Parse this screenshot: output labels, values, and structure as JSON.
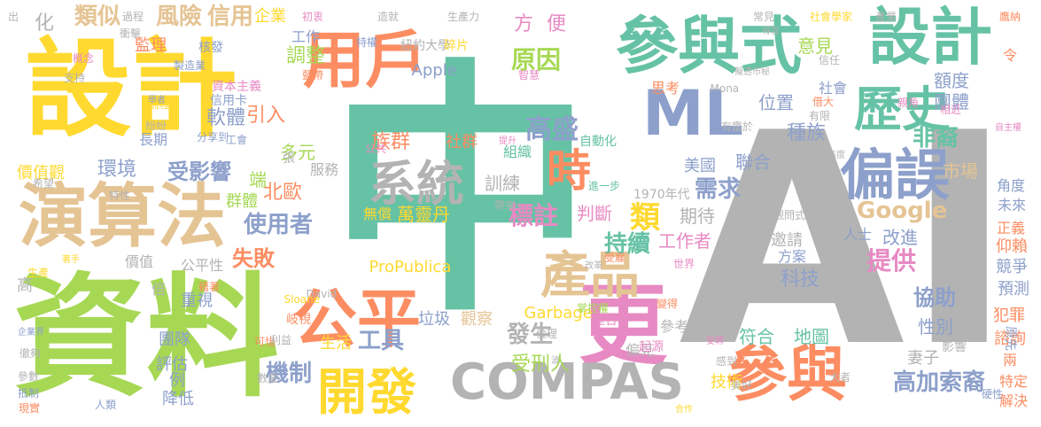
{
  "words": [
    {
      "text": "AI",
      "color": "#b3b3b3"
    },
    {
      "text": "中",
      "color": "#66c2a5"
    },
    {
      "text": "資料",
      "color": "#a6d854"
    },
    {
      "text": "設計",
      "color": "#ffd92f"
    },
    {
      "text": "參與式",
      "color": "#66c2a5"
    },
    {
      "text": "設計",
      "color": "#66c2a5"
    },
    {
      "text": "演算法",
      "color": "#e5c494"
    },
    {
      "text": "用戶",
      "color": "#fc8d62"
    },
    {
      "text": "ML",
      "color": "#8da0cb"
    },
    {
      "text": "歷史",
      "color": "#66c2a5"
    },
    {
      "text": "偏誤",
      "color": "#8da0cb"
    },
    {
      "text": "公平",
      "color": "#fc8d62"
    },
    {
      "text": "更",
      "color": "#e78ac3"
    },
    {
      "text": "COMPAS",
      "color": "#b3b3b3"
    },
    {
      "text": "參與",
      "color": "#fc8d62"
    },
    {
      "text": "開發",
      "color": "#ffd92f"
    },
    {
      "text": "產品",
      "color": "#e5c494"
    },
    {
      "text": "系統",
      "color": "#b3b3b3"
    },
    {
      "text": "時",
      "color": "#fc8d62"
    },
    {
      "text": "Google",
      "color": "#e5c494"
    },
    {
      "text": "類似",
      "color": "#e5c494"
    },
    {
      "text": "風險",
      "color": "#e5c494"
    },
    {
      "text": "信用",
      "color": "#e5c494"
    },
    {
      "text": "企業",
      "color": "#ffd92f"
    },
    {
      "text": "方",
      "color": "#e78ac3"
    },
    {
      "text": "便",
      "color": "#e78ac3"
    },
    {
      "text": "原因",
      "color": "#a6d854"
    },
    {
      "text": "Apple",
      "color": "#8da0cb"
    },
    {
      "text": "化",
      "color": "#b3b3b3"
    },
    {
      "text": "監理",
      "color": "#fc8d62"
    },
    {
      "text": "工作",
      "color": "#8da0cb"
    },
    {
      "text": "調整",
      "color": "#a6d854"
    },
    {
      "text": "核發",
      "color": "#8da0cb"
    },
    {
      "text": "信用卡",
      "color": "#8da0cb"
    },
    {
      "text": "軟體",
      "color": "#8da0cb"
    },
    {
      "text": "引入",
      "color": "#fc8d62"
    },
    {
      "text": "長期",
      "color": "#8da0cb"
    },
    {
      "text": "多元",
      "color": "#a6d854"
    },
    {
      "text": "價值觀",
      "color": "#ffd92f"
    },
    {
      "text": "環境",
      "color": "#8da0cb"
    },
    {
      "text": "受影響",
      "color": "#8da0cb"
    },
    {
      "text": "端",
      "color": "#a6d854"
    },
    {
      "text": "群體",
      "color": "#a6d854"
    },
    {
      "text": "北歐",
      "color": "#fc8d62"
    },
    {
      "text": "使用者",
      "color": "#8da0cb"
    },
    {
      "text": "失敗",
      "color": "#fc8d62"
    },
    {
      "text": "價值",
      "color": "#b3b3b3"
    },
    {
      "text": "公平性",
      "color": "#b3b3b3"
    },
    {
      "text": "服務",
      "color": "#b3b3b3"
    },
    {
      "text": "族群",
      "color": "#fc8d62"
    },
    {
      "text": "社群",
      "color": "#fc8d62"
    },
    {
      "text": "高盛",
      "color": "#8da0cb"
    },
    {
      "text": "目標",
      "color": "#66c2a5"
    },
    {
      "text": "標註",
      "color": "#e78ac3"
    },
    {
      "text": "判斷",
      "color": "#e78ac3"
    },
    {
      "text": "組織",
      "color": "#66c2a5"
    },
    {
      "text": "訓練",
      "color": "#b3b3b3"
    },
    {
      "text": "萬靈丹",
      "color": "#ffd92f"
    },
    {
      "text": "無償",
      "color": "#ffd92f"
    },
    {
      "text": "持續",
      "color": "#66c2a5"
    },
    {
      "text": "美國",
      "color": "#8da0cb"
    },
    {
      "text": "聯合",
      "color": "#8da0cb"
    },
    {
      "text": "需求",
      "color": "#8da0cb"
    },
    {
      "text": "類",
      "color": "#ffd92f"
    },
    {
      "text": "期待",
      "color": "#b3b3b3"
    },
    {
      "text": "工作者",
      "color": "#e78ac3"
    },
    {
      "text": "種族",
      "color": "#8da0cb"
    },
    {
      "text": "非裔",
      "color": "#66c2a5"
    },
    {
      "text": "意見",
      "color": "#a6d854"
    },
    {
      "text": "社會",
      "color": "#8da0cb"
    },
    {
      "text": "團體",
      "color": "#8da0cb"
    },
    {
      "text": "額度",
      "color": "#8da0cb"
    },
    {
      "text": "市場",
      "color": "#e5c494"
    },
    {
      "text": "位置",
      "color": "#8da0cb"
    },
    {
      "text": "提供",
      "color": "#e78ac3"
    },
    {
      "text": "人士",
      "color": "#8da0cb"
    },
    {
      "text": "改進",
      "color": "#8da0cb"
    },
    {
      "text": "邀請",
      "color": "#b3b3b3"
    },
    {
      "text": "方案",
      "color": "#8da0cb"
    },
    {
      "text": "科技",
      "color": "#8da0cb"
    },
    {
      "text": "協助",
      "color": "#8da0cb"
    },
    {
      "text": "性別",
      "color": "#8da0cb"
    },
    {
      "text": "符合",
      "color": "#66c2a5"
    },
    {
      "text": "地圖",
      "color": "#66c2a5"
    },
    {
      "text": "妻子",
      "color": "#b3b3b3"
    },
    {
      "text": "高加索裔",
      "color": "#8da0cb"
    },
    {
      "text": "技術",
      "color": "#ffd92f"
    },
    {
      "text": "ProPublica",
      "color": "#ffd92f"
    },
    {
      "text": "Garbage",
      "color": "#ffd92f"
    },
    {
      "text": "垃圾",
      "color": "#8da0cb"
    },
    {
      "text": "觀察",
      "color": "#e5c494"
    },
    {
      "text": "發生",
      "color": "#b3b3b3"
    },
    {
      "text": "受刑人",
      "color": "#a6d854"
    },
    {
      "text": "偏見",
      "color": "#b3b3b3"
    },
    {
      "text": "參考",
      "color": "#b3b3b3"
    },
    {
      "text": "工具",
      "color": "#8da0cb"
    },
    {
      "text": "生活",
      "color": "#ffd92f"
    },
    {
      "text": "機制",
      "color": "#8da0cb"
    },
    {
      "text": "重視",
      "color": "#8da0cb"
    },
    {
      "text": "團隊",
      "color": "#8da0cb"
    },
    {
      "text": "評估",
      "color": "#8da0cb"
    },
    {
      "text": "例",
      "color": "#8da0cb"
    },
    {
      "text": "降低",
      "color": "#8da0cb"
    },
    {
      "text": "岐視",
      "color": "#fc8d62"
    },
    {
      "text": "倍",
      "color": "#b3b3b3"
    },
    {
      "text": "高",
      "color": "#b3b3b3"
    },
    {
      "text": "張",
      "color": "#b3b3b3"
    },
    {
      "text": "未來",
      "color": "#8da0cb"
    },
    {
      "text": "正義",
      "color": "#fc8d62"
    },
    {
      "text": "仰賴",
      "color": "#fc8d62"
    },
    {
      "text": "競爭",
      "color": "#8da0cb"
    },
    {
      "text": "預測",
      "color": "#8da0cb"
    },
    {
      "text": "犯罪",
      "color": "#fc8d62"
    },
    {
      "text": "諮詢",
      "color": "#fc8d62"
    },
    {
      "text": "兩",
      "color": "#fc8d62"
    },
    {
      "text": "特定",
      "color": "#fc8d62"
    },
    {
      "text": "解決",
      "color": "#fc8d62"
    },
    {
      "text": "角度",
      "color": "#8da0cb"
    },
    {
      "text": "令",
      "color": "#fc8d62"
    },
    {
      "text": "原先",
      "color": "#8da0cb"
    },
    {
      "text": "思考",
      "color": "#fc8d62"
    },
    {
      "text": "David",
      "color": "#b3b3b3"
    },
    {
      "text": "Sloane",
      "color": "#ffd92f"
    },
    {
      "text": "Mona",
      "color": "#b3b3b3"
    },
    {
      "text": "1970年代",
      "color": "#b3b3b3"
    },
    {
      "text": "出",
      "color": "#b3b3b3"
    },
    {
      "text": "過程",
      "color": "#b3b3b3"
    },
    {
      "text": "初衷",
      "color": "#e78ac3"
    },
    {
      "text": "造就",
      "color": "#b3b3b3"
    },
    {
      "text": "生產力",
      "color": "#b3b3b3"
    },
    {
      "text": "常見",
      "color": "#b3b3b3"
    },
    {
      "text": "社會學家",
      "color": "#ffd92f"
    },
    {
      "text": "產業",
      "color": "#b3b3b3"
    },
    {
      "text": "鷹納",
      "color": "#fc8d62"
    },
    {
      "text": "紐約大學",
      "color": "#b3b3b3"
    },
    {
      "text": "碎片",
      "color": "#ffd92f"
    },
    {
      "text": "智慧",
      "color": "#e78ac3"
    },
    {
      "text": "人工智慧",
      "color": "#66c2a5"
    },
    {
      "text": "自動化",
      "color": "#66c2a5"
    },
    {
      "text": "提升",
      "color": "#e78ac3"
    },
    {
      "text": "公共",
      "color": "#e78ac3"
    },
    {
      "text": "帶來",
      "color": "#b3b3b3"
    },
    {
      "text": "進一步",
      "color": "#66c2a5"
    },
    {
      "text": "工會",
      "color": "#8da0cb"
    },
    {
      "text": "資本主義",
      "color": "#e78ac3"
    },
    {
      "text": "製造業",
      "color": "#8da0cb"
    },
    {
      "text": "概念",
      "color": "#e78ac3"
    },
    {
      "text": "支持",
      "color": "#b3b3b3"
    },
    {
      "text": "流程",
      "color": "#ffd92f"
    },
    {
      "text": "學者",
      "color": "#8da0cb"
    },
    {
      "text": "紛紛",
      "color": "#b3b3b3"
    },
    {
      "text": "分享到",
      "color": "#8da0cb"
    },
    {
      "text": "藍帶",
      "color": "#fc8d62"
    },
    {
      "text": "得宜",
      "color": "#b3b3b3"
    },
    {
      "text": "擬透市秘",
      "color": "#b3b3b3"
    },
    {
      "text": "信任",
      "color": "#b3b3b3"
    },
    {
      "text": "借大",
      "color": "#fc8d62"
    },
    {
      "text": "有限",
      "color": "#b3b3b3"
    },
    {
      "text": "親角",
      "color": "#e78ac3"
    },
    {
      "text": "相近",
      "color": "#e78ac3"
    },
    {
      "text": "自主權",
      "color": "#e78ac3"
    },
    {
      "text": "有鑑於",
      "color": "#b3b3b3"
    },
    {
      "text": "高度",
      "color": "#b3b3b3"
    },
    {
      "text": "政策",
      "color": "#b3b3b3"
    },
    {
      "text": "觀問式",
      "color": "#b3b3b3"
    },
    {
      "text": "受雇",
      "color": "#fc8d62"
    },
    {
      "text": "掌控權",
      "color": "#a6d854"
    },
    {
      "text": "重合",
      "color": "#e78ac3"
    },
    {
      "text": "起源",
      "color": "#e78ac3"
    },
    {
      "text": "變得",
      "color": "#fc8d62"
    },
    {
      "text": "受聘",
      "color": "#e78ac3"
    },
    {
      "text": "感到",
      "color": "#b3b3b3"
    },
    {
      "text": "美好",
      "color": "#b3b3b3"
    },
    {
      "text": "合作",
      "color": "#ffd92f"
    },
    {
      "text": "大者",
      "color": "#b3b3b3"
    },
    {
      "text": "硬性",
      "color": "#8da0cb"
    },
    {
      "text": "影響",
      "color": "#b3b3b3"
    },
    {
      "text": "發展出",
      "color": "#b3b3b3"
    },
    {
      "text": "世界",
      "color": "#e78ac3"
    },
    {
      "text": "改革",
      "color": "#b3b3b3"
    },
    {
      "text": "倫理",
      "color": "#b3b3b3"
    },
    {
      "text": "波",
      "color": "#b3b3b3"
    },
    {
      "text": "數量",
      "color": "#b3b3b3"
    },
    {
      "text": "可惜",
      "color": "#fc8d62"
    },
    {
      "text": "利益",
      "color": "#b3b3b3"
    },
    {
      "text": "藉著",
      "color": "#fc8d62"
    },
    {
      "text": "生產",
      "color": "#ffd92f"
    },
    {
      "text": "著手",
      "color": "#ffd92f"
    },
    {
      "text": "企業界",
      "color": "#8da0cb"
    },
    {
      "text": "徹夠",
      "color": "#b3b3b3"
    },
    {
      "text": "參數",
      "color": "#b3b3b3"
    },
    {
      "text": "抵制",
      "color": "#8da0cb"
    },
    {
      "text": "現實",
      "color": "#fc8d62"
    },
    {
      "text": "人類",
      "color": "#8da0cb"
    },
    {
      "text": "希望",
      "color": "#b3b3b3"
    },
    {
      "text": "特性",
      "color": "#b3b3b3"
    },
    {
      "text": "特權",
      "color": "#8da0cb"
    },
    {
      "text": "衝擊",
      "color": "#b3b3b3"
    },
    {
      "text": "求",
      "color": "#b3b3b3"
    },
    {
      "text": "族",
      "color": "#b3b3b3"
    }
  ]
}
